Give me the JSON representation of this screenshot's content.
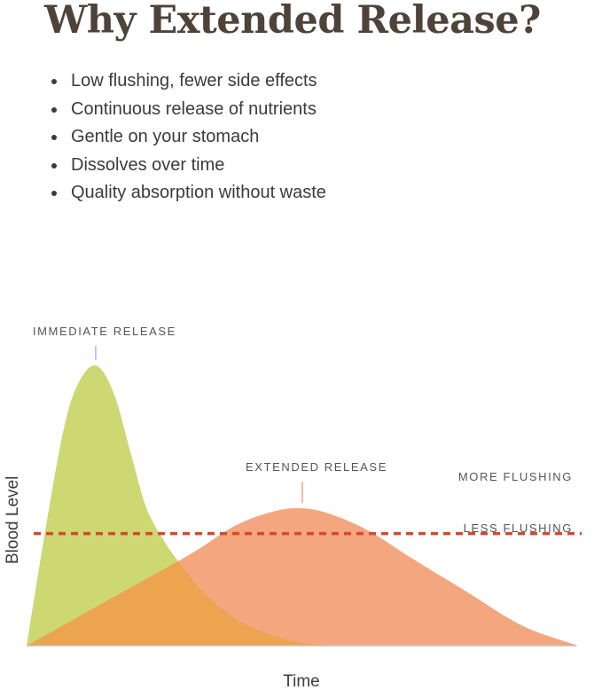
{
  "title": "Why Extended Release?",
  "bullets": [
    "Low flushing, fewer side effects",
    "Continuous release of nutrients",
    "Gentle on your stomach",
    "Dissolves over time",
    "Quality absorption without waste"
  ],
  "chart_data": {
    "type": "area",
    "xlabel": "Time",
    "ylabel": "Blood Level",
    "series": [
      {
        "name": "IMMEDIATE RELEASE",
        "color": "#cdd873",
        "x": [
          0,
          0.05,
          0.1,
          0.14,
          0.19,
          0.24,
          0.29,
          0.33,
          0.38,
          0.43,
          0.48,
          0.57,
          0.67,
          0.76,
          0.86,
          0.95,
          1.0
        ],
        "y": [
          0,
          0.4,
          0.76,
          0.93,
          1.0,
          0.9,
          0.67,
          0.49,
          0.37,
          0.28,
          0.2,
          0.1,
          0.04,
          0.01,
          0,
          0,
          0
        ]
      },
      {
        "name": "EXTENDED RELEASE",
        "color": "#f4a67e",
        "x": [
          0,
          0.1,
          0.2,
          0.3,
          0.38,
          0.45,
          0.5,
          0.55,
          0.62,
          0.7,
          0.8,
          0.9,
          1.0
        ],
        "y": [
          0,
          0.11,
          0.22,
          0.33,
          0.43,
          0.48,
          0.49,
          0.47,
          0.41,
          0.31,
          0.19,
          0.07,
          0
        ]
      }
    ],
    "threshold": {
      "y": 0.4,
      "color": "#d24a2c",
      "label_above": "MORE FLUSHING",
      "label_below": "LESS FLUSHING"
    },
    "overlap_color": "#eda451",
    "grid": false,
    "legend": "none"
  }
}
